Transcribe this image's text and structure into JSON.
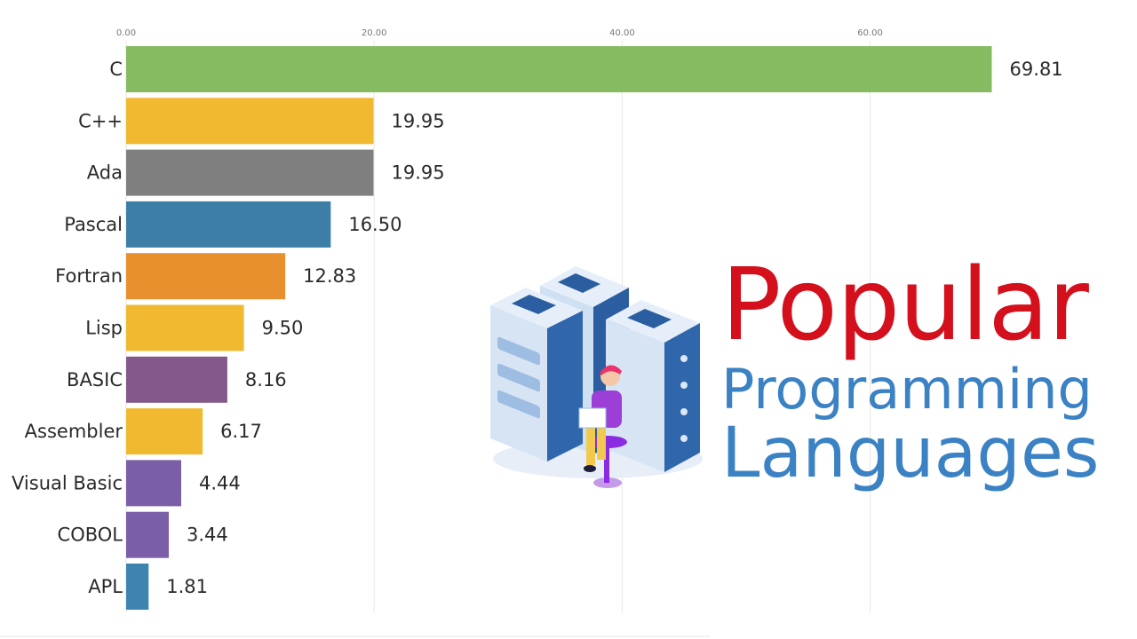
{
  "title": {
    "line1": "Popular",
    "line2": "Programming",
    "line3": "Languages"
  },
  "illustration": {
    "icon": "server-racks-with-programmer-icon",
    "colors": {
      "server_light": "#dbe8f6",
      "server_mid": "#8fb4de",
      "server_dark": "#2b5ea0",
      "person_shirt": "#9b3fd6",
      "person_pants": "#f2c94c",
      "person_hair": "#e8336b",
      "chair": "#8a2be2"
    }
  },
  "chart_data": {
    "type": "bar",
    "orientation": "horizontal",
    "xlim": [
      0,
      70
    ],
    "ticks": [
      0,
      20,
      40,
      60
    ],
    "tick_labels": [
      "0.00",
      "20.00",
      "40.00",
      "60.00"
    ],
    "grid": true,
    "categories": [
      "C",
      "C++",
      "Ada",
      "Pascal",
      "Fortran",
      "Lisp",
      "BASIC",
      "Assembler",
      "Visual Basic",
      "COBOL",
      "APL"
    ],
    "values": [
      69.81,
      19.95,
      19.95,
      16.5,
      12.83,
      9.5,
      8.16,
      6.17,
      4.44,
      3.44,
      1.81
    ],
    "value_labels": [
      "69.81",
      "19.95",
      "19.95",
      "16.50",
      "12.83",
      "9.50",
      "8.16",
      "6.17",
      "4.44",
      "3.44",
      "1.81"
    ],
    "colors": [
      "#87bb62",
      "#f1b930",
      "#7f7f7f",
      "#3d7ea6",
      "#e8902e",
      "#f1b930",
      "#85588b",
      "#f1b930",
      "#7a5ea8",
      "#7a5ea8",
      "#3d85b0"
    ]
  }
}
